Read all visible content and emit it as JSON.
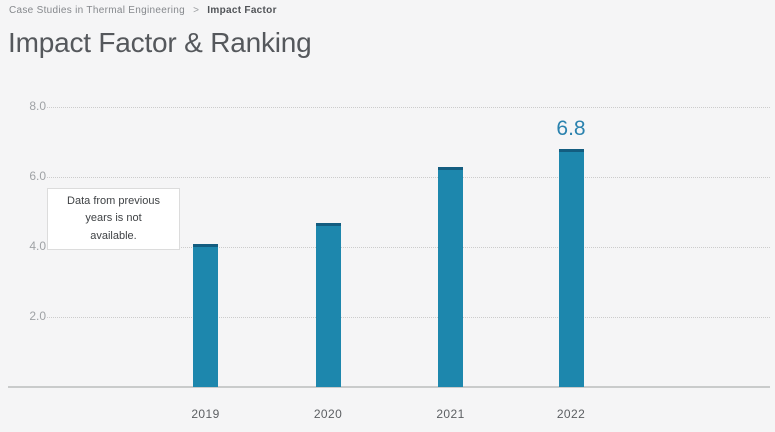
{
  "breadcrumb": {
    "journal": "Case Studies in Thermal Engineering",
    "separator": ">",
    "current": "Impact Factor"
  },
  "title": "Impact Factor & Ranking",
  "tooltip": {
    "text": "Data from previous years is not available."
  },
  "chart_data": {
    "type": "bar",
    "title": "Impact Factor & Ranking",
    "categories": [
      "2019",
      "2020",
      "2021",
      "2022"
    ],
    "values": [
      4.1,
      4.7,
      6.3,
      6.8
    ],
    "annotations": [
      {
        "category": "2022",
        "text": "6.8"
      }
    ],
    "xlabel": "",
    "ylabel": "",
    "ylim": [
      0,
      8
    ],
    "yticks": [
      2.0,
      4.0,
      6.0,
      8.0
    ],
    "ytick_labels": [
      "2.0",
      "4.0",
      "6.0",
      "8.0"
    ],
    "grid": "dotted-horizontal",
    "legend": "none",
    "colors": {
      "bar": "#1d87ad",
      "bar_top_edge": "#135d80",
      "annotation": "#2a82ae",
      "gridline": "#cccccc",
      "axis_line": "#c9cbcb",
      "background": "#f5f5f6"
    }
  }
}
